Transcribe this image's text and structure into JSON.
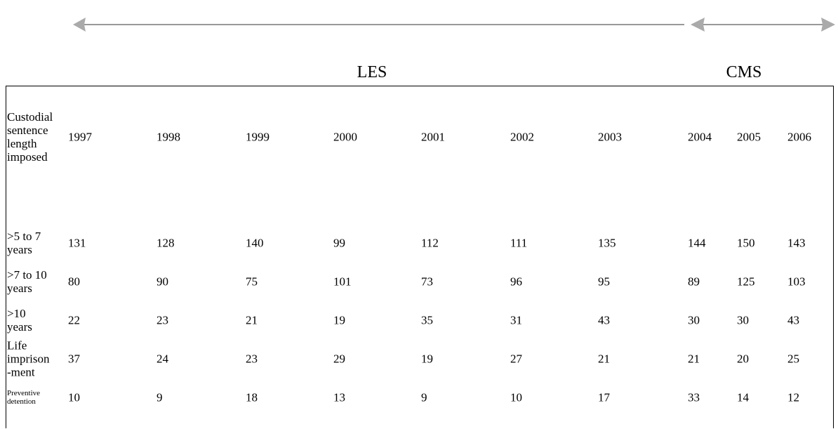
{
  "periods": [
    {
      "label": "LES"
    },
    {
      "label": "CMS"
    }
  ],
  "table": {
    "header": [
      "Custodial sentence length imposed",
      "1997",
      "1998",
      "1999",
      "2000",
      "2001",
      "2002",
      "2003",
      "2004",
      "2005",
      "2006"
    ],
    "rows": [
      [
        ">5 to 7 years",
        "131",
        "128",
        "140",
        "99",
        "112",
        "111",
        "135",
        "144",
        "150",
        "143"
      ],
      [
        ">7 to 10 years",
        "80",
        "90",
        "75",
        "101",
        "73",
        "96",
        "95",
        "89",
        "125",
        "103"
      ],
      [
        ">10 years",
        "22",
        "23",
        "21",
        "19",
        "35",
        "31",
        "43",
        "30",
        "30",
        "43"
      ],
      [
        "Life imprison -ment",
        "37",
        "24",
        "23",
        "29",
        "19",
        "27",
        "21",
        "21",
        "20",
        "25"
      ],
      [
        "Preventive detention",
        "10",
        "9",
        "18",
        "13",
        "9",
        "10",
        "17",
        "33",
        "14",
        "12"
      ]
    ]
  }
}
